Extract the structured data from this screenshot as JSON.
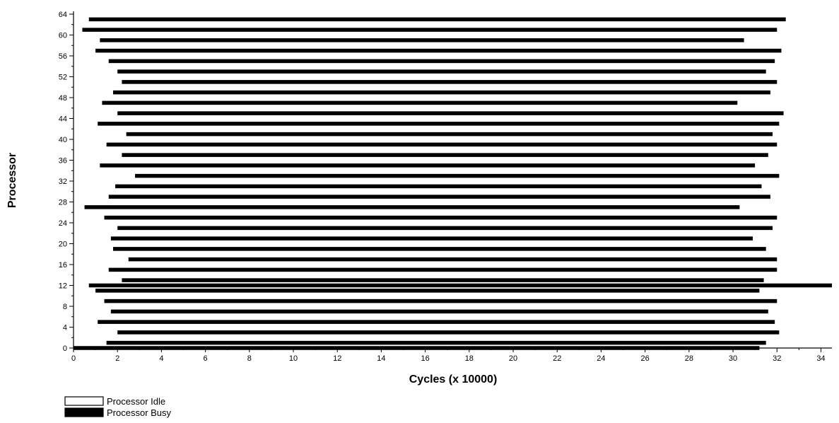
{
  "chart_data": {
    "type": "bar",
    "subtype": "gantt-timeline",
    "xlabel": "Cycles (x 10000)",
    "ylabel": "Processor",
    "xlim": [
      0,
      34.5
    ],
    "ylim": [
      0,
      64
    ],
    "x_ticks": [
      0,
      2,
      4,
      6,
      8,
      10,
      12,
      14,
      16,
      18,
      20,
      22,
      24,
      26,
      28,
      30,
      32,
      34
    ],
    "y_ticks": [
      0,
      4,
      8,
      12,
      16,
      20,
      24,
      28,
      32,
      36,
      40,
      44,
      48,
      52,
      56,
      60,
      64
    ],
    "grid": false,
    "legend": {
      "placement": "bottom-left",
      "entries": [
        {
          "label": "Processor Idle",
          "fill": "#ffffff"
        },
        {
          "label": "Processor Busy",
          "fill": "#000000"
        }
      ]
    },
    "processor_count": 64,
    "busy_intervals": [
      {
        "processor": 63,
        "start": 0.7,
        "end": 32.4
      },
      {
        "processor": 61,
        "start": 0.4,
        "end": 32.0
      },
      {
        "processor": 59,
        "start": 1.2,
        "end": 30.5
      },
      {
        "processor": 57,
        "start": 1.0,
        "end": 32.2
      },
      {
        "processor": 55,
        "start": 1.6,
        "end": 31.9
      },
      {
        "processor": 53,
        "start": 2.0,
        "end": 31.5
      },
      {
        "processor": 51,
        "start": 2.2,
        "end": 32.0
      },
      {
        "processor": 49,
        "start": 1.8,
        "end": 31.7
      },
      {
        "processor": 47,
        "start": 1.3,
        "end": 30.2
      },
      {
        "processor": 45,
        "start": 2.0,
        "end": 32.3
      },
      {
        "processor": 43,
        "start": 1.1,
        "end": 32.1
      },
      {
        "processor": 41,
        "start": 2.4,
        "end": 31.8
      },
      {
        "processor": 39,
        "start": 1.5,
        "end": 32.0
      },
      {
        "processor": 37,
        "start": 2.2,
        "end": 31.6
      },
      {
        "processor": 35,
        "start": 1.2,
        "end": 31.0
      },
      {
        "processor": 33,
        "start": 2.8,
        "end": 32.1
      },
      {
        "processor": 31,
        "start": 1.9,
        "end": 31.3
      },
      {
        "processor": 29,
        "start": 1.6,
        "end": 31.7
      },
      {
        "processor": 27,
        "start": 0.5,
        "end": 30.3
      },
      {
        "processor": 25,
        "start": 1.4,
        "end": 32.0
      },
      {
        "processor": 23,
        "start": 2.0,
        "end": 31.8
      },
      {
        "processor": 21,
        "start": 1.7,
        "end": 30.9
      },
      {
        "processor": 19,
        "start": 1.8,
        "end": 31.5
      },
      {
        "processor": 17,
        "start": 2.5,
        "end": 32.0
      },
      {
        "processor": 15,
        "start": 1.6,
        "end": 32.0
      },
      {
        "processor": 13,
        "start": 2.2,
        "end": 31.4
      },
      {
        "processor": 12,
        "start": 0.7,
        "end": 34.5
      },
      {
        "processor": 11,
        "start": 1.0,
        "end": 31.2
      },
      {
        "processor": 9,
        "start": 1.4,
        "end": 32.0
      },
      {
        "processor": 7,
        "start": 1.7,
        "end": 31.6
      },
      {
        "processor": 5,
        "start": 1.1,
        "end": 31.9
      },
      {
        "processor": 3,
        "start": 2.0,
        "end": 32.1
      },
      {
        "processor": 1,
        "start": 1.5,
        "end": 31.5
      },
      {
        "processor": 0,
        "start": 0.0,
        "end": 31.2
      }
    ]
  }
}
